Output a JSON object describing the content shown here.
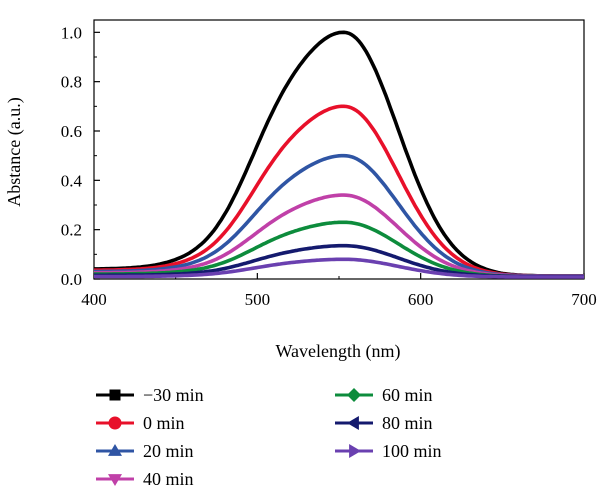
{
  "chart_data": {
    "type": "line",
    "xlabel": "Wavelength (nm)",
    "ylabel": "Abstance (a.u.)",
    "xlim": [
      400,
      700
    ],
    "ylim": [
      0,
      1.05
    ],
    "x_ticks": [
      "400",
      "500",
      "600",
      "700"
    ],
    "y_ticks": [
      "0.0",
      "0.2",
      "0.4",
      "0.6",
      "0.8",
      "1.0"
    ],
    "grid": false,
    "legend_position": "bottom",
    "peak_wavelength": 554,
    "series": [
      {
        "name": "−30 min",
        "color": "#000000",
        "marker": "square",
        "peak": 1.0,
        "baseline": 0.04,
        "tail": 0.012
      },
      {
        "name": "0 min",
        "color": "#e8102a",
        "marker": "circle",
        "peak": 0.7,
        "baseline": 0.035,
        "tail": 0.012
      },
      {
        "name": "20 min",
        "color": "#2f55a4",
        "marker": "triangle-up",
        "peak": 0.5,
        "baseline": 0.03,
        "tail": 0.012
      },
      {
        "name": "40 min",
        "color": "#c040a8",
        "marker": "triangle-down",
        "peak": 0.34,
        "baseline": 0.025,
        "tail": 0.012
      },
      {
        "name": "60 min",
        "color": "#0d8c3c",
        "marker": "diamond",
        "peak": 0.23,
        "baseline": 0.02,
        "tail": 0.01
      },
      {
        "name": "80 min",
        "color": "#141a6e",
        "marker": "triangle-left",
        "peak": 0.135,
        "baseline": 0.015,
        "tail": 0.01
      },
      {
        "name": "100 min",
        "color": "#6a40b0",
        "marker": "triangle-right",
        "peak": 0.08,
        "baseline": 0.01,
        "tail": 0.008
      }
    ]
  }
}
